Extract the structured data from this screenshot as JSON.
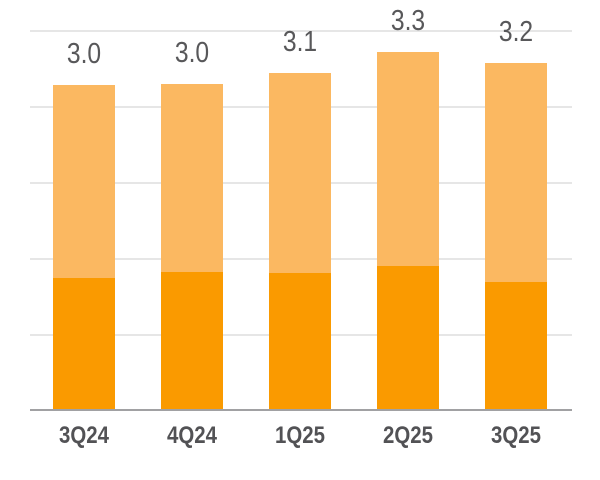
{
  "chart_data": {
    "type": "bar",
    "stacked": true,
    "title": "",
    "xlabel": "",
    "ylabel": "",
    "categories": [
      "3Q24",
      "4Q24",
      "1Q25",
      "2Q25",
      "3Q25"
    ],
    "series": [
      {
        "name": "bottom-segment",
        "color": "#FA9A00",
        "values": [
          1.22,
          1.27,
          1.26,
          1.33,
          1.18
        ]
      },
      {
        "name": "top-segment",
        "color": "#FBB861",
        "values": [
          1.78,
          1.73,
          1.84,
          1.97,
          2.02
        ]
      }
    ],
    "totals": [
      3.0,
      3.0,
      3.1,
      3.3,
      3.2
    ],
    "total_labels": [
      "3.0",
      "3.0",
      "3.1",
      "3.3",
      "3.2"
    ],
    "ylim": [
      0,
      3.5
    ],
    "gridline_values": [
      0.7,
      1.4,
      2.1,
      2.8,
      3.5
    ],
    "grid": true,
    "legend": "none",
    "tick_labels_y": []
  },
  "colors": {
    "bottom_segment": "#FA9A00",
    "top_segment": "#FBB861",
    "gridline": "#E6E6E6",
    "axis_line": "#A1A1A3",
    "label_text": "#58585A",
    "background": "#FFFFFF"
  }
}
